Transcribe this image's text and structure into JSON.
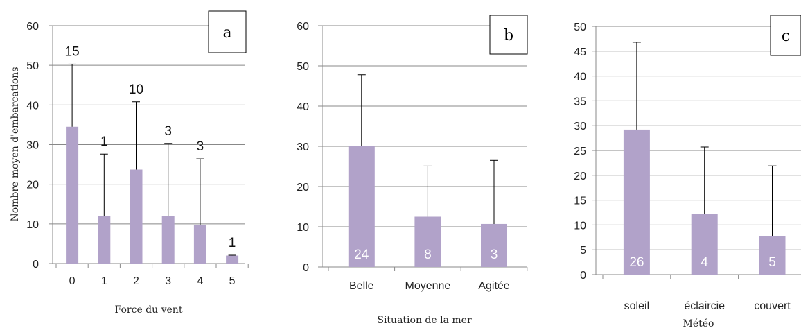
{
  "colors": {
    "bar": "#b1a2c9",
    "grid": "#888888",
    "axis": "#888888",
    "error_bar": "#000000"
  },
  "chart_data": [
    {
      "type": "bar",
      "panel_label": "a",
      "title": "",
      "xlabel": "Force du vent",
      "ylabel": "Nombre moyen d'embarcations",
      "ylim": [
        0,
        60
      ],
      "yticks": [
        0,
        10,
        20,
        30,
        40,
        50,
        60
      ],
      "categories": [
        "0",
        "1",
        "2",
        "3",
        "4",
        "5"
      ],
      "values": [
        34.5,
        12,
        23.7,
        12,
        9.8,
        2
      ],
      "error_upper": [
        50.3,
        27.6,
        40.8,
        30.3,
        26.4,
        2.1
      ],
      "counts": [
        "15",
        "1",
        "10",
        "3",
        "3",
        "1"
      ],
      "count_position": "above",
      "grid": true,
      "legend": "none"
    },
    {
      "type": "bar",
      "panel_label": "b",
      "title": "",
      "xlabel": "Situation de la mer",
      "ylabel": "",
      "ylim": [
        0,
        60
      ],
      "yticks": [
        0,
        10,
        20,
        30,
        40,
        50,
        60
      ],
      "categories": [
        "Belle",
        "Moyenne",
        "Agitée"
      ],
      "values": [
        30,
        12.5,
        10.7
      ],
      "error_upper": [
        47.8,
        25.1,
        26.5
      ],
      "counts": [
        "24",
        "8",
        "3"
      ],
      "count_position": "inside",
      "grid": true,
      "legend": "none"
    },
    {
      "type": "bar",
      "panel_label": "c",
      "title": "",
      "xlabel": "Météo",
      "ylabel": "",
      "ylim": [
        0,
        50
      ],
      "yticks": [
        0,
        5,
        10,
        15,
        20,
        25,
        30,
        35,
        40,
        45,
        50
      ],
      "categories": [
        "soleil",
        "éclaircie",
        "couvert"
      ],
      "values": [
        29.2,
        12.2,
        7.7
      ],
      "error_upper": [
        46.8,
        25.7,
        21.9
      ],
      "counts": [
        "26",
        "4",
        "5"
      ],
      "count_position": "inside",
      "grid": true,
      "legend": "none"
    }
  ]
}
